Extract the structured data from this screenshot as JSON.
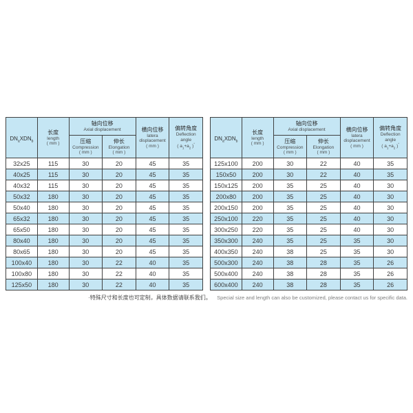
{
  "colors": {
    "row_highlight": "#c5e6f4",
    "header_background": "#c5e6f4",
    "table_border": "#3f3f3f"
  },
  "header": {
    "dn_col": {
      "p1": "DN",
      "sub1": "a",
      "p2": "XDN",
      "sub2": "b"
    },
    "length": {
      "zh": "长度",
      "en": "length",
      "unit": "( mm )"
    },
    "axial": {
      "zh": "轴向位移",
      "en": "Axial displacement"
    },
    "compression": {
      "zh": "压缩",
      "en": "Compression",
      "unit": "( mm )"
    },
    "elongation": {
      "zh": "伸长",
      "en": "Elongation",
      "unit": "( mm )"
    },
    "lateral": {
      "zh": "横向位移",
      "en1": "latera",
      "en2": "displacement",
      "unit": "( mm )"
    },
    "deflection": {
      "zh": "偏转角度",
      "en1": "Deflection",
      "en2": "angle",
      "f1": "( a",
      "fs1": "1",
      "f2": "+a",
      "fs2": "2",
      "f3": " )",
      "fsup": "°"
    }
  },
  "tables": [
    {
      "id": "left",
      "rows": [
        [
          "32x25",
          "115",
          "30",
          "20",
          "45",
          "35"
        ],
        [
          "40x25",
          "115",
          "30",
          "20",
          "45",
          "35"
        ],
        [
          "40x32",
          "115",
          "30",
          "20",
          "45",
          "35"
        ],
        [
          "50x32",
          "180",
          "30",
          "20",
          "45",
          "35"
        ],
        [
          "50x40",
          "180",
          "30",
          "20",
          "45",
          "35"
        ],
        [
          "65x32",
          "180",
          "30",
          "20",
          "45",
          "35"
        ],
        [
          "65x50",
          "180",
          "30",
          "20",
          "45",
          "35"
        ],
        [
          "80x40",
          "180",
          "30",
          "20",
          "45",
          "35"
        ],
        [
          "80x65",
          "180",
          "30",
          "20",
          "45",
          "35"
        ],
        [
          "100x40",
          "180",
          "30",
          "22",
          "40",
          "35"
        ],
        [
          "100x80",
          "180",
          "30",
          "22",
          "40",
          "35"
        ],
        [
          "125x50",
          "180",
          "30",
          "22",
          "40",
          "35"
        ]
      ]
    },
    {
      "id": "right",
      "rows": [
        [
          "125x100",
          "200",
          "30",
          "22",
          "40",
          "35"
        ],
        [
          "150x50",
          "200",
          "30",
          "22",
          "40",
          "35"
        ],
        [
          "150x125",
          "200",
          "35",
          "25",
          "40",
          "30"
        ],
        [
          "200x80",
          "200",
          "35",
          "25",
          "40",
          "30"
        ],
        [
          "200x150",
          "200",
          "35",
          "25",
          "40",
          "30"
        ],
        [
          "250x100",
          "220",
          "35",
          "25",
          "40",
          "30"
        ],
        [
          "300x250",
          "220",
          "35",
          "25",
          "40",
          "30"
        ],
        [
          "350x300",
          "240",
          "35",
          "25",
          "35",
          "30"
        ],
        [
          "400x350",
          "240",
          "38",
          "25",
          "35",
          "30"
        ],
        [
          "500x300",
          "240",
          "38",
          "28",
          "35",
          "26"
        ],
        [
          "500x400",
          "240",
          "38",
          "28",
          "35",
          "26"
        ],
        [
          "600x400",
          "240",
          "38",
          "28",
          "35",
          "26"
        ]
      ]
    }
  ],
  "footnote": {
    "zh": "·特殊尺寸和长度也可定制，具体数据请联系我们。",
    "en": "Special size and length can also be customized, please contact us for specific data."
  }
}
